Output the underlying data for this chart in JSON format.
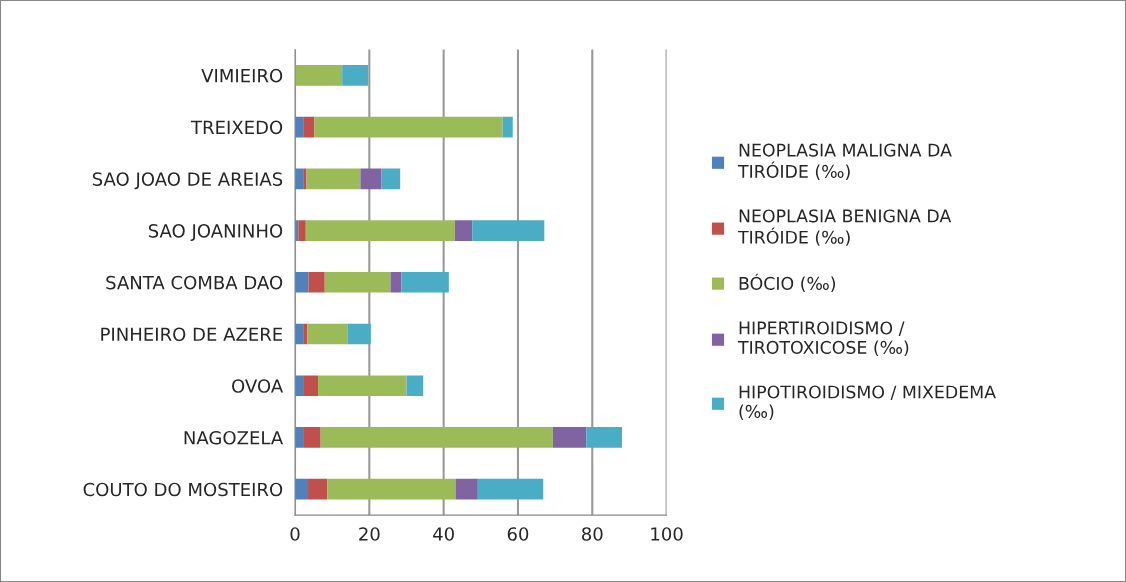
{
  "chart_data": {
    "type": "bar",
    "orientation": "horizontal",
    "stacked": true,
    "categories": [
      "VIMIEIRO",
      "TREIXEDO",
      "SAO JOAO DE AREIAS",
      "SAO JOANINHO",
      "SANTA COMBA DAO",
      "PINHEIRO DE AZERE",
      "OVOA",
      "NAGOZELA",
      "COUTO DO MOSTEIRO"
    ],
    "series": [
      {
        "name": "NEOPLASIA MALIGNA DA\nTIRÓIDE (‰)",
        "color": "#4f81bd",
        "values": [
          0,
          2.2,
          2.2,
          0.9,
          3.6,
          2.2,
          2.4,
          2.4,
          3.5
        ]
      },
      {
        "name": "NEOPLASIA BENIGNA DA\nTIRÓIDE (‰)",
        "color": "#c0504d",
        "values": [
          0,
          3.0,
          0.9,
          2.0,
          4.4,
          1.1,
          3.8,
          4.5,
          5.2
        ]
      },
      {
        "name": "BÓCIO (‰)",
        "color": "#9bbb59",
        "values": [
          12.7,
          50.7,
          14.5,
          40.1,
          17.7,
          10.8,
          23.8,
          62.5,
          34.5
        ]
      },
      {
        "name": "HIPERTIROIDISMO /\nTIROTOXICOSE (‰)",
        "color": "#8064a2",
        "values": [
          0,
          0,
          5.6,
          4.7,
          2.9,
          0,
          0,
          9.0,
          6.0
        ]
      },
      {
        "name": "HIPOTIROIDISMO / MIXEDEMA\n(‰)",
        "color": "#4bacc6",
        "values": [
          7.0,
          2.7,
          5.1,
          19.4,
          12.8,
          6.3,
          4.5,
          9.6,
          17.6
        ]
      }
    ],
    "xlim": [
      0,
      100
    ],
    "xticks": [
      0,
      20,
      40,
      60,
      80,
      100
    ],
    "grid": "x",
    "legend": "right"
  }
}
